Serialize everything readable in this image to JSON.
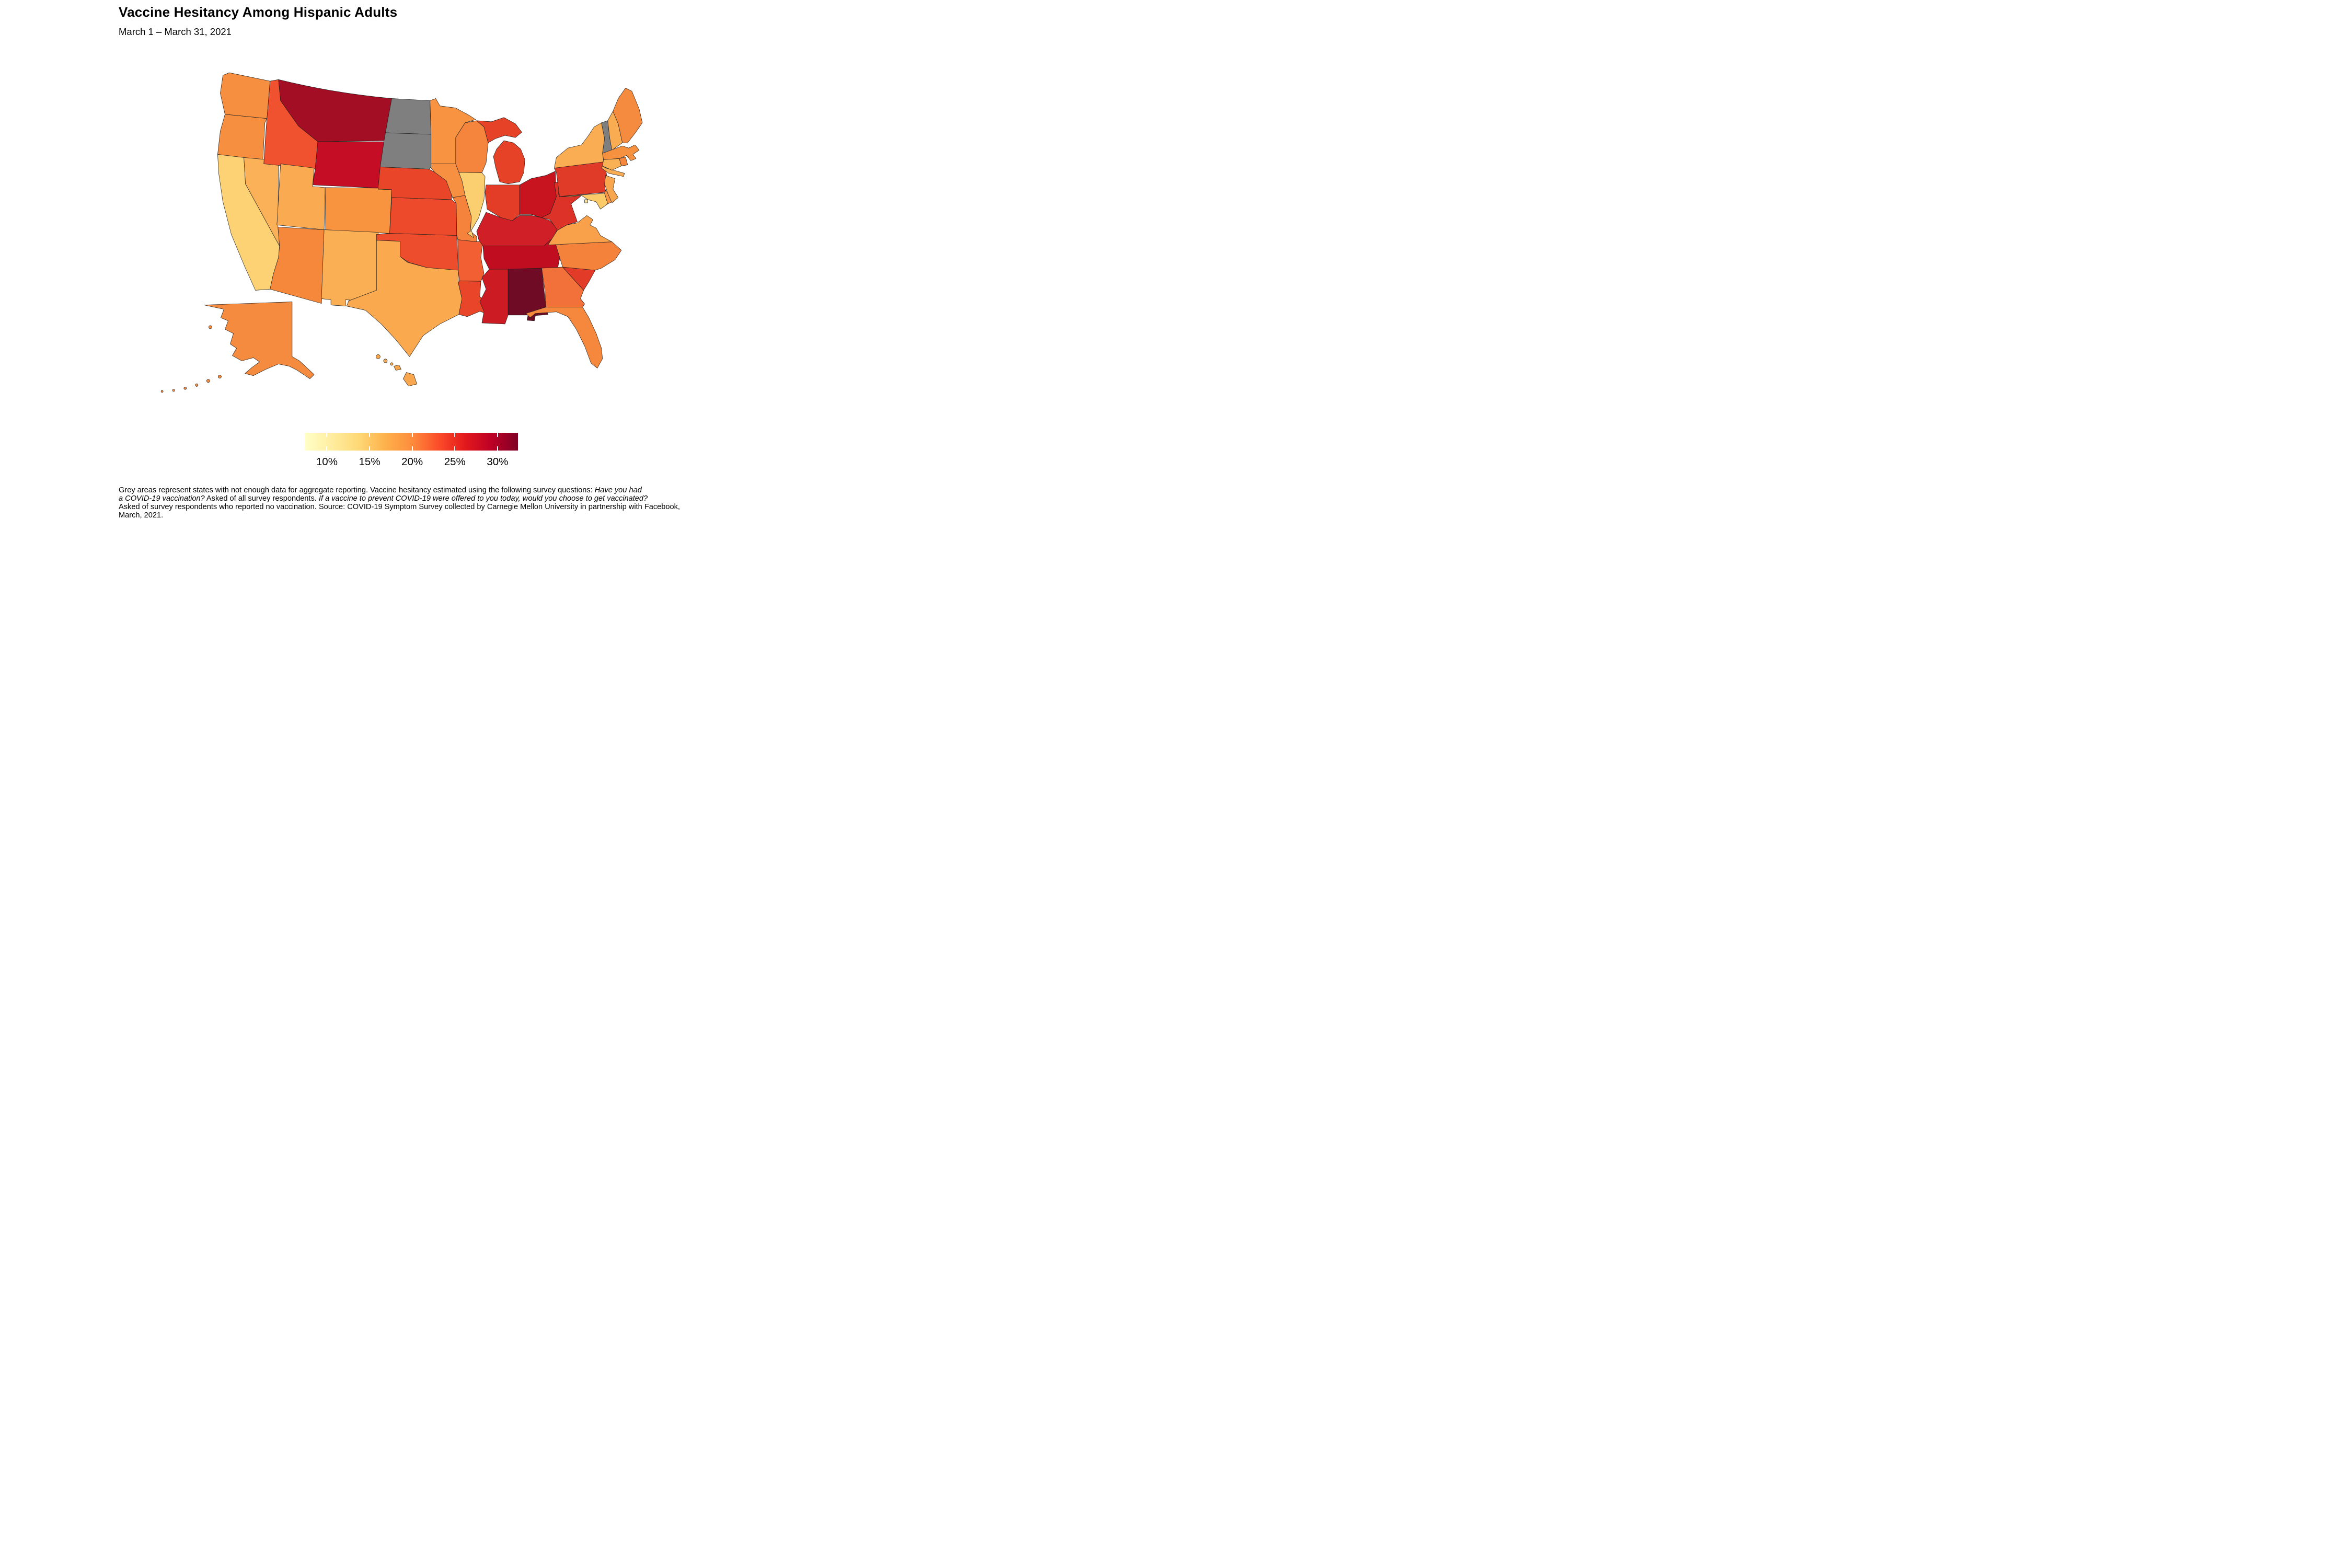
{
  "header": {
    "title": "Vaccine Hesitancy Among Hispanic Adults",
    "subtitle": "March 1 – March 31, 2021"
  },
  "footnote": {
    "lines": [
      [
        {
          "text": "Grey areas represent states with not enough data for aggregate reporting. Vaccine hesitancy estimated using the following survey questions: ",
          "italic": false
        },
        {
          "text": "Have you had",
          "italic": true
        }
      ],
      [
        {
          "text": "a COVID-19 vaccination?",
          "italic": true
        },
        {
          "text": " Asked of all survey respondents. ",
          "italic": false
        },
        {
          "text": "If a vaccine to prevent COVID-19 were offered to you today, would you choose to get vaccinated?",
          "italic": true
        }
      ],
      [
        {
          "text": "Asked of survey respondents who reported no vaccination. Source: COVID-19 Symptom Survey collected by Carnegie Mellon University in partnership with Facebook,",
          "italic": false
        }
      ],
      [
        {
          "text": "March, 2021.",
          "italic": false
        }
      ]
    ]
  },
  "chart_data": {
    "type": "choropleth_map",
    "title": "Vaccine Hesitancy Among Hispanic Adults",
    "subtitle": "March 1 – March 31, 2021",
    "metric": "Estimated vaccine hesitancy among Hispanic adults (%)",
    "region": "United States, by state",
    "colorbar": {
      "orientation": "horizontal",
      "range": [
        7.4,
        32.4
      ],
      "ticks": [
        {
          "label": "10%",
          "value": 10
        },
        {
          "label": "15%",
          "value": 15
        },
        {
          "label": "20%",
          "value": 20
        },
        {
          "label": "25%",
          "value": 25
        },
        {
          "label": "30%",
          "value": 30
        }
      ],
      "palette": [
        "#FFFFC8",
        "#FFEDA0",
        "#FED976",
        "#FEB24C",
        "#FD8D3C",
        "#FC4E2A",
        "#E31A1C",
        "#BD0026",
        "#800026"
      ],
      "no_data_color": "#7F7F7F",
      "tick_mark_color": "#FFFFFF"
    },
    "no_data_states": [
      "North Dakota",
      "South Dakota",
      "Vermont"
    ],
    "states": [
      {
        "id": "WA",
        "name": "Washington",
        "value": 20.6,
        "color": "#F78F40"
      },
      {
        "id": "OR",
        "name": "Oregon",
        "value": 20.6,
        "color": "#F78F40"
      },
      {
        "id": "CA",
        "name": "California",
        "value": 14.2,
        "color": "#FCD274"
      },
      {
        "id": "NV",
        "name": "Nevada",
        "value": 17.3,
        "color": "#FBB157"
      },
      {
        "id": "ID",
        "name": "Idaho",
        "value": 24.5,
        "color": "#F0522F"
      },
      {
        "id": "MT",
        "name": "Montana",
        "value": 30.2,
        "color": "#A40E24"
      },
      {
        "id": "WY",
        "name": "Wyoming",
        "value": 28.5,
        "color": "#C50D26"
      },
      {
        "id": "UT",
        "name": "Utah",
        "value": 17.9,
        "color": "#FAAB51"
      },
      {
        "id": "CO",
        "name": "Colorado",
        "value": 20.2,
        "color": "#F8943F"
      },
      {
        "id": "AZ",
        "name": "Arizona",
        "value": 21.1,
        "color": "#F6883C"
      },
      {
        "id": "NM",
        "name": "New Mexico",
        "value": 17.5,
        "color": "#FBAF55"
      },
      {
        "id": "ND",
        "name": "North Dakota",
        "value": null,
        "color": "#7F7F7F"
      },
      {
        "id": "SD",
        "name": "South Dakota",
        "value": null,
        "color": "#7F7F7F"
      },
      {
        "id": "NE",
        "name": "Nebraska",
        "value": 25.4,
        "color": "#E94529"
      },
      {
        "id": "KS",
        "name": "Kansas",
        "value": 25.1,
        "color": "#EC4A2B"
      },
      {
        "id": "OK",
        "name": "Oklahoma",
        "value": 24.9,
        "color": "#ED4D2C"
      },
      {
        "id": "TX",
        "name": "Texas",
        "value": 18.1,
        "color": "#FAA94F"
      },
      {
        "id": "MN",
        "name": "Minnesota",
        "value": 20.3,
        "color": "#F89342"
      },
      {
        "id": "IA",
        "name": "Iowa",
        "value": 20.5,
        "color": "#F79041"
      },
      {
        "id": "MO",
        "name": "Missouri",
        "value": 21.5,
        "color": "#F5833B"
      },
      {
        "id": "AR",
        "name": "Arkansas",
        "value": 23.8,
        "color": "#F15F33"
      },
      {
        "id": "LA",
        "name": "Louisiana",
        "value": 25.4,
        "color": "#E94629"
      },
      {
        "id": "WI",
        "name": "Wisconsin",
        "value": 21.4,
        "color": "#F5853C"
      },
      {
        "id": "IL",
        "name": "Illinois",
        "value": 14.6,
        "color": "#FBCE70"
      },
      {
        "id": "MS",
        "name": "Mississippi",
        "value": 27.8,
        "color": "#CD1B23"
      },
      {
        "id": "MI",
        "name": "Michigan",
        "value": 25.7,
        "color": "#E64228"
      },
      {
        "id": "IN",
        "name": "Indiana",
        "value": 26.2,
        "color": "#E33C27"
      },
      {
        "id": "OH",
        "name": "Ohio",
        "value": 28.2,
        "color": "#C8141E"
      },
      {
        "id": "KY",
        "name": "Kentucky",
        "value": 27.5,
        "color": "#D11F27"
      },
      {
        "id": "TN",
        "name": "Tennessee",
        "value": 29.0,
        "color": "#C00D1F"
      },
      {
        "id": "AL",
        "name": "Alabama",
        "value": 32.0,
        "color": "#6F0B24"
      },
      {
        "id": "GA",
        "name": "Georgia",
        "value": 22.6,
        "color": "#F2713A"
      },
      {
        "id": "FL",
        "name": "Florida",
        "value": 21.1,
        "color": "#F6883D"
      },
      {
        "id": "SC",
        "name": "South Carolina",
        "value": 26.2,
        "color": "#E23C28"
      },
      {
        "id": "NC",
        "name": "North Carolina",
        "value": 21.5,
        "color": "#F5823A"
      },
      {
        "id": "VA",
        "name": "Virginia",
        "value": 19.0,
        "color": "#F9A04A"
      },
      {
        "id": "WV",
        "name": "West Virginia",
        "value": 26.6,
        "color": "#DC3228"
      },
      {
        "id": "MD",
        "name": "Maryland",
        "value": 14.9,
        "color": "#FBCB69"
      },
      {
        "id": "DE",
        "name": "Delaware",
        "value": 20.1,
        "color": "#F79545"
      },
      {
        "id": "DC",
        "name": "District of Columbia",
        "value": 12.3,
        "color": "#FBE294"
      },
      {
        "id": "PA",
        "name": "Pennsylvania",
        "value": 26.2,
        "color": "#E03A29"
      },
      {
        "id": "NJ",
        "name": "New Jersey",
        "value": 18.3,
        "color": "#F9A74E"
      },
      {
        "id": "NY",
        "name": "New York",
        "value": 17.7,
        "color": "#FAAD52"
      },
      {
        "id": "CT",
        "name": "Connecticut",
        "value": 17.3,
        "color": "#FAB156"
      },
      {
        "id": "RI",
        "name": "Rhode Island",
        "value": 21.2,
        "color": "#F6873C"
      },
      {
        "id": "MA",
        "name": "Massachusetts",
        "value": 20.5,
        "color": "#F69140"
      },
      {
        "id": "VT",
        "name": "Vermont",
        "value": null,
        "color": "#7F7F7F"
      },
      {
        "id": "NH",
        "name": "New Hampshire",
        "value": 17.8,
        "color": "#FAAC52"
      },
      {
        "id": "ME",
        "name": "Maine",
        "value": 21.0,
        "color": "#F58B3E"
      },
      {
        "id": "AK",
        "name": "Alaska",
        "value": 21.0,
        "color": "#F58B3E"
      },
      {
        "id": "HI",
        "name": "Hawaii",
        "value": 18.3,
        "color": "#F9A74E"
      }
    ]
  }
}
